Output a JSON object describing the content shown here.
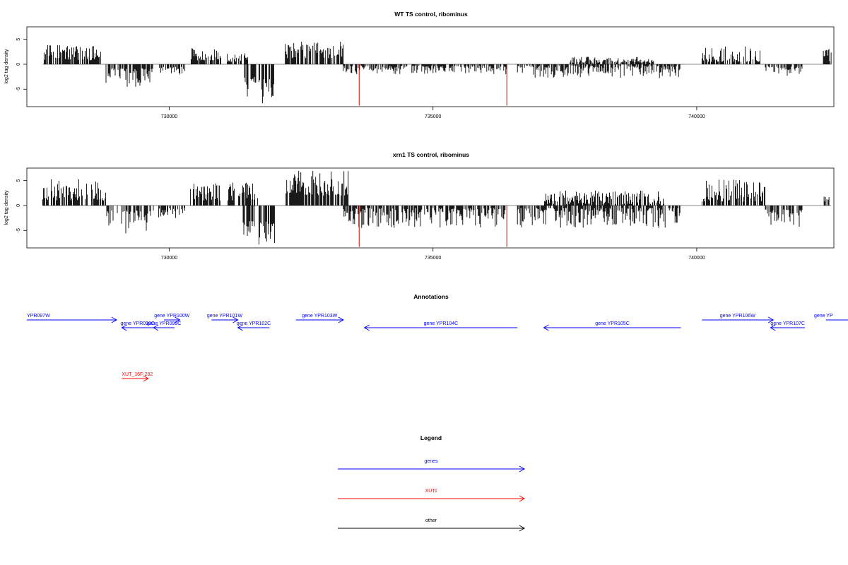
{
  "chart_data": [
    {
      "type": "bar",
      "title": "WT TS control, ribominus",
      "ylabel": "log2 tag density",
      "xlim": [
        727300,
        742600
      ],
      "ylim": [
        -8.5,
        7.5
      ],
      "x_ticks": [
        730000,
        735000,
        740000
      ],
      "x_tick_labels": [
        "730000",
        "735000",
        "740000"
      ],
      "y_ticks": [
        -5,
        0,
        5
      ],
      "y_tick_labels": [
        "-5",
        "0",
        "5"
      ],
      "profile": {
        "description_of_segments": "x ranges in genomic coordinates, approx signal amplitude range",
        "segments": [
          {
            "x0": 727600,
            "x1": 728700,
            "min": 0.8,
            "max": 4.0,
            "sign": 1
          },
          {
            "x0": 728800,
            "x1": 729700,
            "min": 0.8,
            "max": 4.6,
            "sign": -1
          },
          {
            "x0": 729800,
            "x1": 730300,
            "min": 0.5,
            "max": 2.2,
            "sign": -1
          },
          {
            "x0": 730400,
            "x1": 731000,
            "min": 0.8,
            "max": 3.4,
            "sign": 1
          },
          {
            "x0": 731100,
            "x1": 731500,
            "min": 0.5,
            "max": 2.2,
            "sign": 1
          },
          {
            "x0": 731400,
            "x1": 731650,
            "min": 2.5,
            "max": 6.5,
            "sign": -1
          },
          {
            "x0": 731700,
            "x1": 732000,
            "min": 3.0,
            "max": 8.0,
            "sign": -1
          },
          {
            "x0": 732200,
            "x1": 733300,
            "min": 1.2,
            "max": 4.6,
            "sign": 1
          },
          {
            "x0": 733300,
            "x1": 736400,
            "min": 0.3,
            "max": 2.0,
            "sign": -1
          },
          {
            "x0": 736600,
            "x1": 739700,
            "min": 0.3,
            "max": 2.8,
            "sign": -1
          },
          {
            "x0": 737600,
            "x1": 739200,
            "min": 0.3,
            "max": 1.5,
            "sign": 1
          },
          {
            "x0": 740100,
            "x1": 741200,
            "min": 0.5,
            "max": 3.6,
            "sign": 1
          },
          {
            "x0": 741300,
            "x1": 742000,
            "min": 0.4,
            "max": 2.4,
            "sign": -1
          },
          {
            "x0": 742400,
            "x1": 742550,
            "min": 0.6,
            "max": 3.2,
            "sign": 1
          }
        ],
        "red_markers": [
          733600,
          736400
        ],
        "red_marker_value": -8.3
      }
    },
    {
      "type": "bar",
      "title": "xrn1 TS control, ribominus",
      "ylabel": "log2 tag density",
      "xlim": [
        727300,
        742600
      ],
      "ylim": [
        -8.5,
        7.5
      ],
      "x_ticks": [
        730000,
        735000,
        740000
      ],
      "x_tick_labels": [
        "730000",
        "735000",
        "740000"
      ],
      "y_ticks": [
        -5,
        0,
        5
      ],
      "y_tick_labels": [
        "-5",
        "0",
        "5"
      ],
      "profile": {
        "segments": [
          {
            "x0": 727600,
            "x1": 728800,
            "min": 1.0,
            "max": 5.3,
            "sign": 1
          },
          {
            "x0": 728800,
            "x1": 729700,
            "min": 1.0,
            "max": 5.8,
            "sign": -1
          },
          {
            "x0": 729800,
            "x1": 730300,
            "min": 0.5,
            "max": 2.5,
            "sign": -1
          },
          {
            "x0": 730400,
            "x1": 731000,
            "min": 1.0,
            "max": 5.0,
            "sign": 1
          },
          {
            "x0": 731100,
            "x1": 731700,
            "min": 1.0,
            "max": 5.0,
            "sign": 1
          },
          {
            "x0": 731400,
            "x1": 731650,
            "min": 3.0,
            "max": 7.0,
            "sign": -1
          },
          {
            "x0": 731700,
            "x1": 732000,
            "min": 3.0,
            "max": 8.3,
            "sign": -1
          },
          {
            "x0": 732200,
            "x1": 733400,
            "min": 2.0,
            "max": 7.0,
            "sign": 1
          },
          {
            "x0": 733300,
            "x1": 736400,
            "min": 0.5,
            "max": 4.5,
            "sign": -1
          },
          {
            "x0": 736600,
            "x1": 739700,
            "min": 0.5,
            "max": 4.5,
            "sign": -1
          },
          {
            "x0": 737100,
            "x1": 739400,
            "min": 0.3,
            "max": 3.0,
            "sign": 1
          },
          {
            "x0": 740100,
            "x1": 741300,
            "min": 0.8,
            "max": 5.2,
            "sign": 1
          },
          {
            "x0": 741300,
            "x1": 742000,
            "min": 0.8,
            "max": 4.5,
            "sign": -1
          },
          {
            "x0": 742400,
            "x1": 742550,
            "min": 0.6,
            "max": 3.6,
            "sign": 1
          }
        ],
        "red_markers": [
          733600,
          736400
        ],
        "red_marker_value": -8.3
      }
    },
    {
      "type": "annotation-track",
      "title": "Annotations",
      "xlim": [
        727300,
        742600
      ],
      "features": [
        {
          "label": "YPR097W",
          "display_label": "YPR097W",
          "class": "gene",
          "start": 727300,
          "end": 729000,
          "strand": "+",
          "row": 0
        },
        {
          "label": "gene YPR098C",
          "class": "gene",
          "start": 729100,
          "end": 729700,
          "strand": "-",
          "row": 1
        },
        {
          "label": "gene YPR099C",
          "class": "gene",
          "start": 729700,
          "end": 730100,
          "strand": "-",
          "row": 1
        },
        {
          "label": "gene YPR100W",
          "class": "gene",
          "start": 729900,
          "end": 730200,
          "strand": "+",
          "row": 0
        },
        {
          "label": "gene YPR101W",
          "class": "gene",
          "start": 730800,
          "end": 731300,
          "strand": "+",
          "row": 0
        },
        {
          "label": "gene YPR102C",
          "class": "gene",
          "start": 731300,
          "end": 731900,
          "strand": "-",
          "row": 1
        },
        {
          "label": "gene YPR103W",
          "class": "gene",
          "start": 732400,
          "end": 733300,
          "strand": "+",
          "row": 0
        },
        {
          "label": "gene YPR104C",
          "class": "gene",
          "start": 733700,
          "end": 736600,
          "strand": "-",
          "row": 1
        },
        {
          "label": "gene YPR105C",
          "class": "gene",
          "start": 737100,
          "end": 739700,
          "strand": "-",
          "row": 1
        },
        {
          "label": "gene YPR106W",
          "class": "gene",
          "start": 740100,
          "end": 741450,
          "strand": "+",
          "row": 0
        },
        {
          "label": "gene YPR107C",
          "class": "gene",
          "start": 741400,
          "end": 742050,
          "strand": "-",
          "row": 1
        },
        {
          "label": "gene YP",
          "class": "gene",
          "start": 742450,
          "end": 742600,
          "strand": "+",
          "row": 0
        },
        {
          "label": "XUT_16F-282",
          "class": "xut",
          "start": 729100,
          "end": 729600,
          "strand": "+",
          "row": 2
        }
      ]
    },
    {
      "type": "legend",
      "title": "Legend",
      "entries": [
        {
          "label": "genes",
          "color": "#0000ff"
        },
        {
          "label": "XUTs",
          "color": "#ff0000"
        },
        {
          "label": "other",
          "color": "#000000"
        }
      ]
    }
  ],
  "colors": {
    "bars": "#000000",
    "red_marker": "#d00000",
    "gene": "#0000ff",
    "xut": "#ff0000",
    "other": "#000000",
    "axis": "#000000",
    "zero_line": "#a0a0a0"
  }
}
